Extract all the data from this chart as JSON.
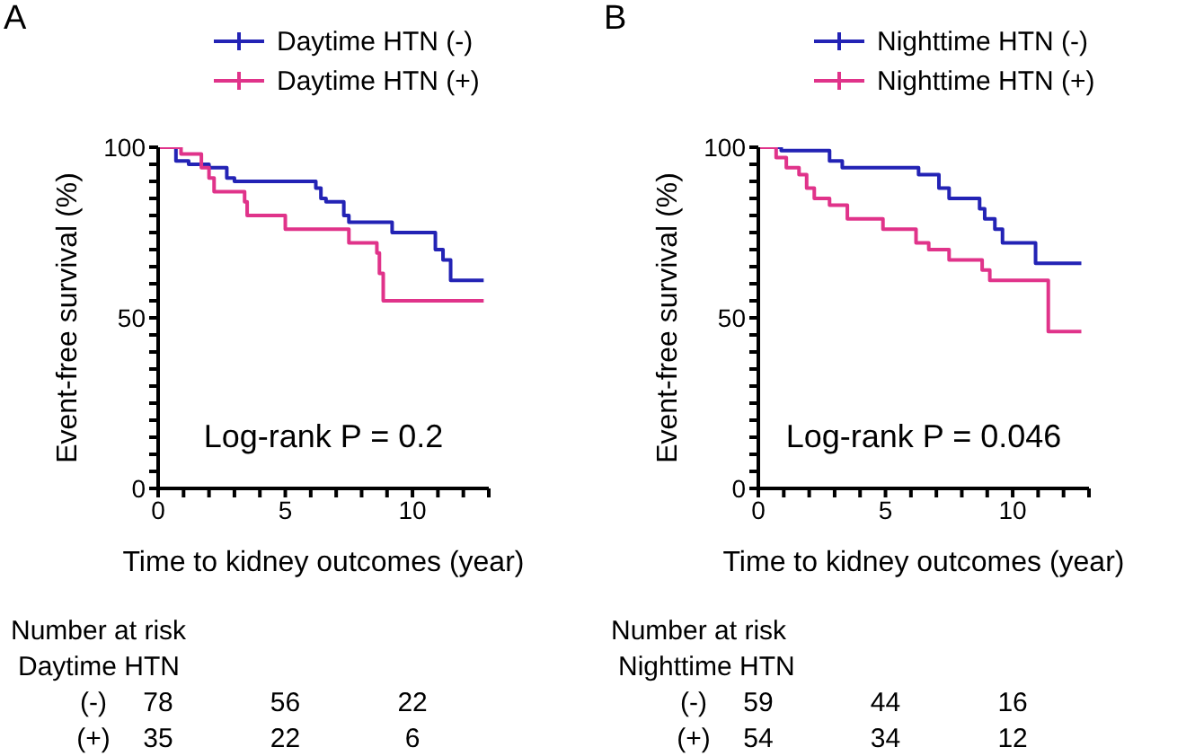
{
  "chart_data": [
    {
      "type": "step",
      "title": "A",
      "xlabel": "Time to kidney outcomes (year)",
      "ylabel": "Event-free survival (%)",
      "xlim": [
        0,
        13
      ],
      "xticks": [
        0,
        {
          "value": 1,
          "label": null
        },
        {
          "value": 2,
          "label": null
        },
        {
          "value": 3,
          "label": null
        },
        {
          "value": 4,
          "label": null
        },
        5,
        {
          "value": 6,
          "label": null
        },
        {
          "value": 7,
          "label": null
        },
        {
          "value": 8,
          "label": null
        },
        {
          "value": 9,
          "label": null
        },
        10,
        {
          "value": 11,
          "label": null
        },
        {
          "value": 12,
          "label": null
        },
        {
          "value": 13,
          "label": null
        }
      ],
      "ylim": [
        0,
        100
      ],
      "yticks": [
        0,
        {
          "value": 5,
          "label": null
        },
        {
          "value": 10,
          "label": null
        },
        {
          "value": 15,
          "label": null
        },
        {
          "value": 20,
          "label": null
        },
        {
          "value": 25,
          "label": null
        },
        {
          "value": 30,
          "label": null
        },
        {
          "value": 35,
          "label": null
        },
        {
          "value": 40,
          "label": null
        },
        {
          "value": 45,
          "label": null
        },
        50,
        {
          "value": 55,
          "label": null
        },
        {
          "value": 60,
          "label": null
        },
        {
          "value": 65,
          "label": null
        },
        {
          "value": 70,
          "label": null
        },
        {
          "value": 75,
          "label": null
        },
        {
          "value": 80,
          "label": null
        },
        {
          "value": 85,
          "label": null
        },
        {
          "value": 90,
          "label": null
        },
        {
          "value": 95,
          "label": null
        },
        100
      ],
      "legend": "top",
      "series": [
        {
          "name": "Daytime HTN (-)",
          "color": "#2323b5",
          "x": [
            0,
            0.7,
            1.2,
            2.0,
            2.7,
            3.0,
            6.2,
            6.4,
            6.6,
            7.3,
            7.5,
            8.6,
            9.2,
            10.9,
            11.2,
            11.5,
            12.8
          ],
          "values": [
            100,
            96,
            95,
            94,
            91,
            90,
            88,
            85,
            84,
            80,
            78,
            78,
            75,
            70,
            67,
            61,
            61
          ]
        },
        {
          "name": "Daytime HTN (+)",
          "color": "#e0338a",
          "x": [
            0,
            0.9,
            1.7,
            2.0,
            2.2,
            3.4,
            3.5,
            5.0,
            7.5,
            8.6,
            8.7,
            8.8,
            8.85,
            12.8
          ],
          "values": [
            100,
            98,
            94,
            91,
            87,
            84,
            80,
            76,
            72,
            69,
            63,
            63,
            55,
            55
          ]
        }
      ],
      "annotations": [
        "Log-rank P = 0.2",
        "Number at risk",
        "Daytime HTN",
        "(-)",
        "78",
        "56",
        "22",
        "(+)",
        "35",
        "22",
        "6"
      ]
    },
    {
      "type": "step",
      "title": "B",
      "xlabel": "Time to kidney outcomes (year)",
      "ylabel": "Event-free survival (%)",
      "xlim": [
        0,
        13
      ],
      "xticks": [
        0,
        {
          "value": 1,
          "label": null
        },
        {
          "value": 2,
          "label": null
        },
        {
          "value": 3,
          "label": null
        },
        {
          "value": 4,
          "label": null
        },
        5,
        {
          "value": 6,
          "label": null
        },
        {
          "value": 7,
          "label": null
        },
        {
          "value": 8,
          "label": null
        },
        {
          "value": 9,
          "label": null
        },
        10,
        {
          "value": 11,
          "label": null
        },
        {
          "value": 12,
          "label": null
        },
        {
          "value": 13,
          "label": null
        }
      ],
      "ylim": [
        0,
        100
      ],
      "yticks": [
        0,
        {
          "value": 5,
          "label": null
        },
        {
          "value": 10,
          "label": null
        },
        {
          "value": 15,
          "label": null
        },
        {
          "value": 20,
          "label": null
        },
        {
          "value": 25,
          "label": null
        },
        {
          "value": 30,
          "label": null
        },
        {
          "value": 35,
          "label": null
        },
        {
          "value": 40,
          "label": null
        },
        {
          "value": 45,
          "label": null
        },
        50,
        {
          "value": 55,
          "label": null
        },
        {
          "value": 60,
          "label": null
        },
        {
          "value": 65,
          "label": null
        },
        {
          "value": 70,
          "label": null
        },
        {
          "value": 75,
          "label": null
        },
        {
          "value": 80,
          "label": null
        },
        {
          "value": 85,
          "label": null
        },
        {
          "value": 90,
          "label": null
        },
        {
          "value": 95,
          "label": null
        },
        100
      ],
      "legend": "top",
      "series": [
        {
          "name": "Nighttime HTN (-)",
          "color": "#2323b5",
          "x": [
            0,
            0.9,
            2.8,
            3.3,
            6.3,
            7.1,
            7.5,
            8.7,
            8.9,
            9.3,
            9.6,
            10.9,
            12.7
          ],
          "values": [
            100,
            99,
            96,
            94,
            92,
            88,
            85,
            82,
            79,
            76,
            72,
            66,
            66
          ]
        },
        {
          "name": "Nighttime HTN (+)",
          "color": "#e0338a",
          "x": [
            0,
            0.7,
            1.1,
            1.6,
            1.9,
            2.2,
            2.8,
            3.5,
            4.9,
            6.2,
            6.7,
            7.5,
            8.8,
            9.1,
            11.4,
            12.7
          ],
          "values": [
            100,
            97,
            94,
            92,
            88,
            85,
            83,
            79,
            76,
            72,
            70,
            67,
            64,
            61,
            46,
            46
          ]
        }
      ],
      "annotations": [
        "Log-rank P = 0.046",
        "Number at risk",
        "Nighttime HTN",
        "(-)",
        "59",
        "44",
        "16",
        "(+)",
        "54",
        "34",
        "12"
      ]
    }
  ]
}
